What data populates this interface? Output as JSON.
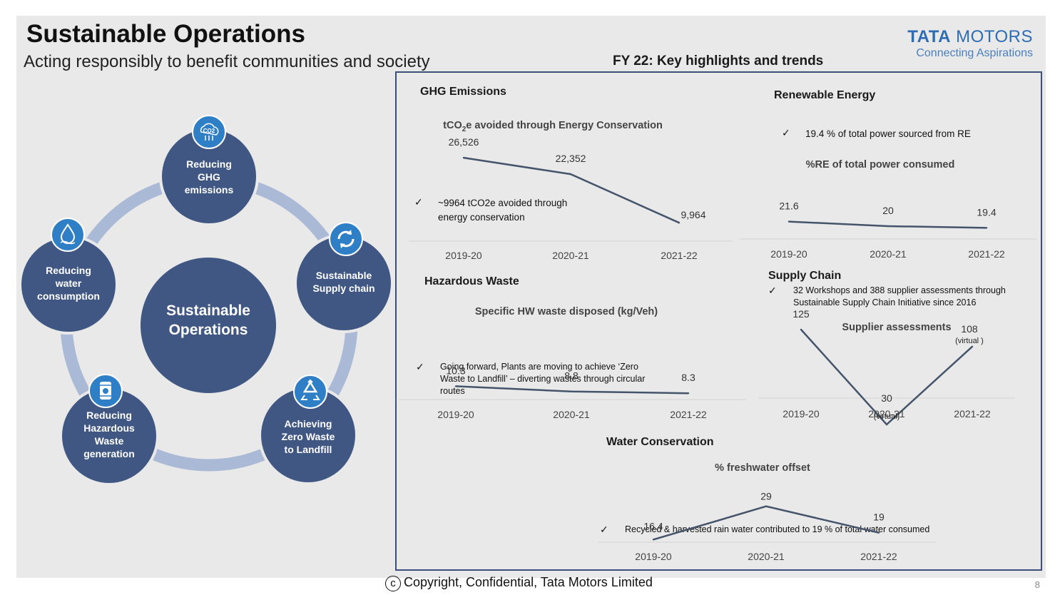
{
  "header": {
    "title": "Sustainable Operations",
    "subtitle": "Acting responsibly to benefit communities and society",
    "logo_main_bold": "TATA",
    "logo_main_rest": "MOTORS",
    "logo_tagline": "Connecting Aspirations",
    "highlights_title": "FY 22: Key highlights and trends"
  },
  "diagram": {
    "center_line1": "Sustainable",
    "center_line2": "Operations",
    "nodes": [
      {
        "lines": [
          "Reducing",
          "GHG",
          "emissions"
        ],
        "icon": "co2-icon"
      },
      {
        "lines": [
          "Sustainable",
          "Supply chain"
        ],
        "icon": "recycle-arrows-icon"
      },
      {
        "lines": [
          "Achieving",
          "Zero Waste",
          "to Landfill"
        ],
        "icon": "recycle-icon"
      },
      {
        "lines": [
          "Reducing",
          "Hazardous",
          "Waste",
          "generation"
        ],
        "icon": "hazard-barrel-icon"
      },
      {
        "lines": [
          "Reducing",
          "water",
          "consumption"
        ],
        "icon": "water-drop-icon"
      }
    ]
  },
  "sections": {
    "ghg": {
      "title": "GHG Emissions",
      "note": "~9964 tCO2e avoided through energy conservation"
    },
    "renewable": {
      "title": "Renewable Energy",
      "note": "19.4 % of total power sourced from RE"
    },
    "hazardous": {
      "title": "Hazardous Waste",
      "note": "Going forward, Plants are moving to achieve ‘Zero Waste to Landfill’ – diverting wastes through circular routes"
    },
    "supply": {
      "title": "Supply Chain",
      "note": "32 Workshops and 388 supplier assessments through Sustainable Supply Chain Initiative since 2016"
    },
    "water": {
      "title": "Water Conservation",
      "note": "Recycled & harvested rain water contributed to 19 % of total water consumed"
    }
  },
  "chart_data": [
    {
      "id": "ghg",
      "type": "line",
      "title_pre": "tCO",
      "title_sub": "2",
      "title_post": "e avoided through Energy Conservation",
      "categories": [
        "2019-20",
        "2020-21",
        "2021-22"
      ],
      "values": [
        26526,
        22352,
        9964
      ],
      "labels": [
        "26,526",
        "22,352",
        "9,964"
      ],
      "ylim": [
        0,
        30000
      ],
      "annotations": []
    },
    {
      "id": "re",
      "type": "line",
      "title": "%RE of total power consumed",
      "categories": [
        "2019-20",
        "2020-21",
        "2021-22"
      ],
      "values": [
        21.6,
        20,
        19.4
      ],
      "labels": [
        "21.6",
        "20",
        "19.4"
      ],
      "ylim": [
        0,
        100
      ],
      "annotations": []
    },
    {
      "id": "hw",
      "type": "line",
      "title": "Specific HW waste disposed (kg/Veh)",
      "categories": [
        "2019-20",
        "2020-21",
        "2021-22"
      ],
      "values": [
        10.3,
        8.8,
        8.3
      ],
      "labels": [
        "10.3",
        "8.8",
        "8.3"
      ],
      "ylim": [
        0,
        60
      ],
      "annotations": []
    },
    {
      "id": "supplier",
      "type": "line",
      "title": "Supplier assessments",
      "categories": [
        "2019-20",
        "2020-21",
        "2021-22"
      ],
      "values": [
        125,
        30,
        108
      ],
      "labels": [
        "125",
        "30",
        "108"
      ],
      "ylim": [
        0,
        200
      ],
      "annotations": [
        "",
        "(virtual)",
        "(virtual )"
      ]
    },
    {
      "id": "water",
      "type": "line",
      "title": "% freshwater offset",
      "categories": [
        "2019-20",
        "2020-21",
        "2021-22"
      ],
      "values": [
        16.4,
        29,
        19
      ],
      "labels": [
        "16.4",
        "29",
        "19"
      ],
      "ylim": [
        0,
        50
      ],
      "annotations": []
    }
  ],
  "footer": {
    "copyright_symbol": "c",
    "copyright": "Copyright, Confidential, Tata Motors Limited",
    "page_number": "8"
  },
  "colors": {
    "circle_fill": "#405784",
    "ring": "#a9b9d6",
    "icon_fill": "#2f7fc6",
    "line": "#44546a",
    "panel_border": "#3b4f7a"
  }
}
